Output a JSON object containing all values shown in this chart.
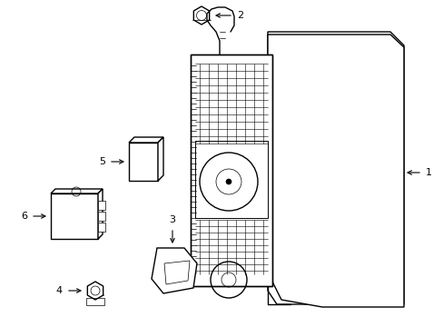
{
  "background_color": "#ffffff",
  "line_color": "#000000",
  "figsize": [
    4.89,
    3.6
  ],
  "dpi": 100,
  "lw_main": 1.0,
  "lw_thin": 0.5,
  "lw_detail": 0.7,
  "font_size": 8
}
